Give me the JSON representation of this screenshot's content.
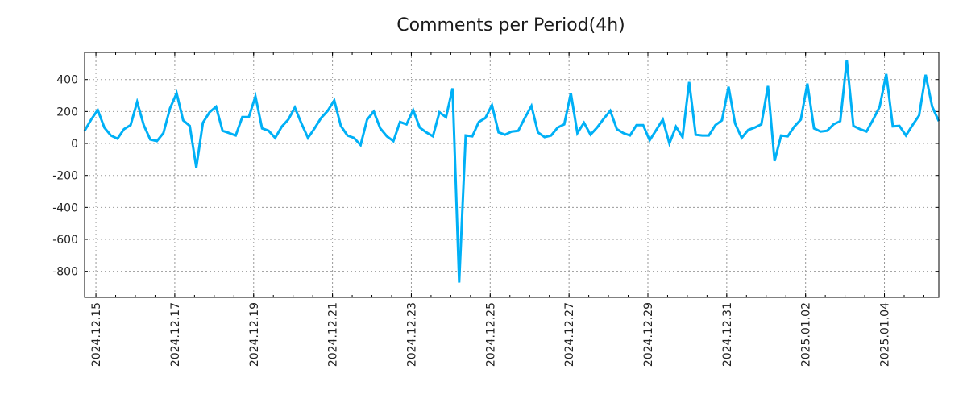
{
  "chart_data": {
    "type": "line",
    "title": "Comments per Period(4h)",
    "xlabel": "",
    "ylabel": "",
    "x_unit": "hours since 2024-12-15 00:00",
    "period_hours": 4,
    "x_start": -6.9,
    "xlim": [
      -6.9,
      513.1
    ],
    "ylim": [
      -963,
      570
    ],
    "grid": true,
    "line_color": "#00b0f6",
    "yticks": [
      -800,
      -600,
      -400,
      -200,
      0,
      200,
      400
    ],
    "ytick_labels": [
      "-800",
      "-600",
      "-400",
      "-200",
      "0",
      "200",
      "400"
    ],
    "xticks": [
      0,
      48,
      96,
      144,
      192,
      240,
      288,
      336,
      384,
      432,
      480
    ],
    "xtick_labels": [
      "2024.12.15",
      "2024.12.17",
      "2024.12.19",
      "2024.12.21",
      "2024.12.23",
      "2024.12.25",
      "2024.12.27",
      "2024.12.29",
      "2024.12.31",
      "2025.01.02",
      "2025.01.04"
    ],
    "series": [
      {
        "name": "comments",
        "values": [
          80,
          150,
          210,
          100,
          50,
          30,
          90,
          115,
          260,
          115,
          25,
          15,
          65,
          220,
          315,
          145,
          110,
          -150,
          130,
          195,
          230,
          80,
          65,
          50,
          165,
          165,
          295,
          95,
          80,
          35,
          105,
          150,
          225,
          125,
          35,
          95,
          160,
          205,
          270,
          110,
          50,
          35,
          -10,
          150,
          200,
          95,
          45,
          15,
          135,
          120,
          210,
          100,
          70,
          45,
          195,
          165,
          345,
          -870,
          50,
          45,
          135,
          160,
          240,
          70,
          55,
          75,
          80,
          160,
          235,
          70,
          40,
          50,
          100,
          120,
          315,
          65,
          130,
          55,
          100,
          155,
          205,
          90,
          65,
          50,
          115,
          115,
          20,
          85,
          150,
          0,
          105,
          40,
          385,
          55,
          50,
          50,
          115,
          145,
          355,
          125,
          35,
          85,
          100,
          120,
          360,
          -110,
          50,
          45,
          105,
          150,
          375,
          95,
          75,
          80,
          120,
          140,
          520,
          110,
          90,
          75,
          150,
          230,
          435,
          107,
          110,
          50,
          115,
          175,
          430,
          230,
          140
        ]
      }
    ]
  }
}
